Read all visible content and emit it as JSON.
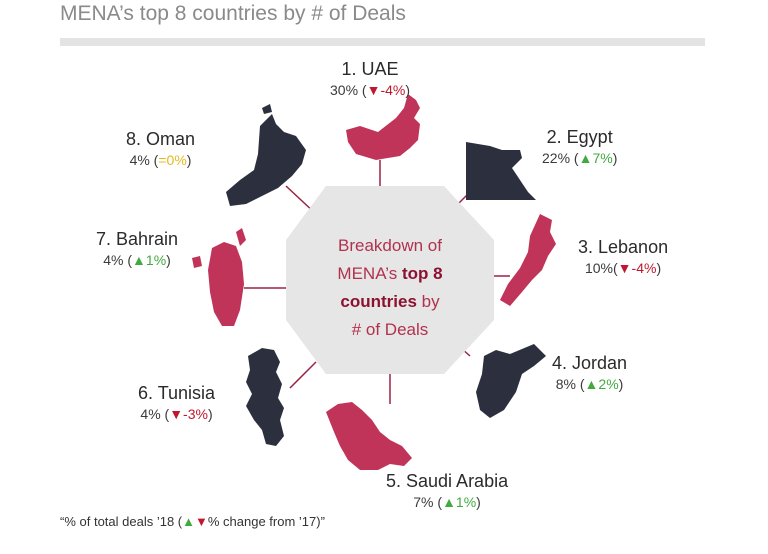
{
  "header": {
    "title": "MENA’s top 8 countries by # of Deals"
  },
  "center": {
    "line1": "Breakdown of",
    "line2_pre": "MENA’s ",
    "line2_bold": "top 8",
    "line3_bold": "countries",
    "line3_post": " by",
    "line4": "# of Deals"
  },
  "footnote": {
    "pre": "“% of total deals ’18 (",
    "up": "▲",
    "down": "▼",
    "post": "% change from ’17)”"
  },
  "colors": {
    "dark_map": "#2c2f3e",
    "red_map": "#c0345a",
    "connector": "#9b2242",
    "up": "#3faa3f",
    "down": "#c0172e",
    "flat": "#e8b820"
  },
  "chart_data": {
    "type": "table",
    "title": "MENA’s top 8 countries by # of Deals",
    "rows": [
      {
        "rank_name": "1. UAE",
        "share": "30%",
        "change": "▼-4%",
        "direction": "down",
        "share_value": 30,
        "change_value": -4
      },
      {
        "rank_name": "2. Egypt",
        "share": "22%",
        "change": "▲7%",
        "direction": "up",
        "share_value": 22,
        "change_value": 7
      },
      {
        "rank_name": "3. Lebanon",
        "share": "10%",
        "change": "▼-4%",
        "direction": "down",
        "share_value": 10,
        "change_value": -4
      },
      {
        "rank_name": "4. Jordan",
        "share": "8%",
        "change": "▲2%",
        "direction": "up",
        "share_value": 8,
        "change_value": 2
      },
      {
        "rank_name": "5. Saudi Arabia",
        "share": "7%",
        "change": "▲1%",
        "direction": "up",
        "share_value": 7,
        "change_value": 1
      },
      {
        "rank_name": "6. Tunisia",
        "share": "4%",
        "change": "▼-3%",
        "direction": "down",
        "share_value": 4,
        "change_value": -3
      },
      {
        "rank_name": "7. Bahrain",
        "share": "4%",
        "change": "▲1%",
        "direction": "up",
        "share_value": 4,
        "change_value": 1
      },
      {
        "rank_name": "8. Oman",
        "share": "4%",
        "change": "=0%",
        "direction": "flat",
        "share_value": 4,
        "change_value": 0
      }
    ]
  }
}
